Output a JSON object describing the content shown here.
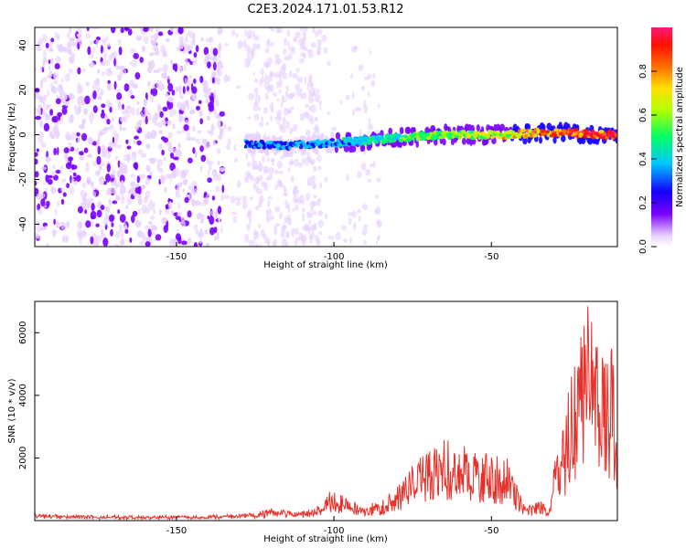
{
  "title": "C2E3.2024.171.01.53.R12",
  "colors": {
    "snr_line": "#e8302a",
    "axes": "#000000",
    "background": "#ffffff"
  },
  "chart_data": [
    {
      "type": "heatmap",
      "xlabel": "Height of straight line (km)",
      "ylabel": "Frequency (Hz)",
      "xlim": [
        -195,
        -10
      ],
      "ylim": [
        -50,
        48
      ],
      "xticks": [
        -150,
        -100,
        -50
      ],
      "yticks": [
        -40,
        -20,
        0,
        20,
        40
      ],
      "xtick_labels": [
        "-150",
        "-100",
        "-50"
      ],
      "ytick_labels": [
        "-40",
        "-20",
        "0",
        "20",
        "40"
      ],
      "colorbar": {
        "label": "Normalized spectral amplitude",
        "range": [
          0,
          1
        ],
        "ticks": [
          0.0,
          0.2,
          0.4,
          0.6,
          0.8
        ],
        "tick_labels": [
          "0.0",
          "0.2",
          "0.4",
          "0.6",
          "0.8"
        ],
        "colormap": [
          "#ffffff",
          "#e9d2ff",
          "#7a00ff",
          "#1400ff",
          "#00c8ff",
          "#00ff66",
          "#b0ff00",
          "#ffe000",
          "#ff7000",
          "#ff1000",
          "#ff1a78"
        ]
      },
      "noise_band_x": [
        -195,
        -85
      ],
      "signal_ridge": {
        "x": [
          -128,
          -115,
          -105,
          -95,
          -85,
          -75,
          -65,
          -55,
          -45,
          -35,
          -25,
          -15,
          -10
        ],
        "frequency": [
          -4,
          -5,
          -4,
          -3,
          -2,
          -1,
          0,
          0,
          0,
          1,
          1,
          0,
          0
        ],
        "amplitude": [
          0.35,
          0.4,
          0.4,
          0.45,
          0.5,
          0.55,
          0.6,
          0.65,
          0.7,
          0.8,
          0.9,
          0.95,
          0.95
        ]
      }
    },
    {
      "type": "line",
      "xlabel": "Height of straight line (km)",
      "ylabel": "SNR (10 * v/v)",
      "xlim": [
        -195,
        -10
      ],
      "ylim": [
        0,
        7000
      ],
      "xticks": [
        -150,
        -100,
        -50
      ],
      "yticks": [
        2000,
        4000,
        6000
      ],
      "xtick_labels": [
        "-150",
        "-100",
        "-50"
      ],
      "ytick_labels": [
        "2000",
        "4000",
        "6000"
      ],
      "series": [
        {
          "color": "#e8302a",
          "x": [
            -195,
            -185,
            -175,
            -165,
            -155,
            -145,
            -135,
            -125,
            -120,
            -115,
            -110,
            -105,
            -100,
            -97,
            -95,
            -90,
            -85,
            -80,
            -75,
            -70,
            -65,
            -60,
            -55,
            -50,
            -45,
            -40,
            -37,
            -35,
            -32,
            -30,
            -27,
            -25,
            -22,
            -20,
            -18,
            -15,
            -12,
            -10
          ],
          "y": [
            120,
            100,
            90,
            80,
            80,
            90,
            100,
            150,
            250,
            200,
            180,
            300,
            700,
            500,
            400,
            300,
            400,
            700,
            1200,
            1600,
            1700,
            1600,
            1500,
            1400,
            1300,
            400,
            300,
            500,
            200,
            1200,
            2000,
            3000,
            4000,
            5500,
            4500,
            3500,
            3800,
            2500
          ]
        }
      ]
    }
  ]
}
